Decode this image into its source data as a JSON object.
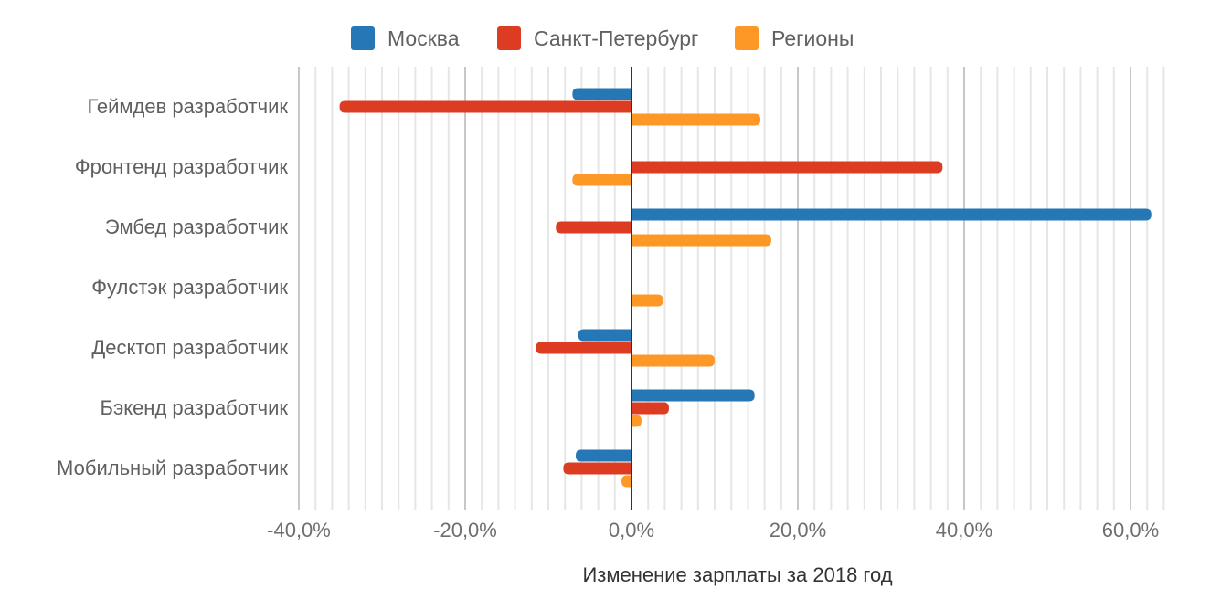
{
  "chart_data": {
    "type": "bar",
    "orientation": "horizontal",
    "title": "",
    "xlabel": "Изменение зарплаты за 2018 год",
    "ylabel": "",
    "xlim": [
      -40,
      64
    ],
    "x_ticks": [
      "-40,0%",
      "-20,0%",
      "0,0%",
      "20,0%",
      "40,0%",
      "60,0%"
    ],
    "x_tick_values": [
      -40,
      -20,
      0,
      20,
      40,
      60
    ],
    "grid": true,
    "minor_grid_step": 2,
    "legend_position": "top",
    "categories": [
      "Геймдев разработчик",
      "Фронтенд разработчик",
      "Эмбед разработчик",
      "Фулстэк разработчик",
      "Десктоп разработчик",
      "Бэкенд разработчик",
      "Мобильный разработчик"
    ],
    "series": [
      {
        "name": "Москва",
        "color": "#2577b5",
        "values": [
          -7.1,
          0,
          62.5,
          0,
          -6.4,
          14.8,
          -6.7
        ]
      },
      {
        "name": "Санкт-Петербург",
        "color": "#dc3d22",
        "values": [
          -35.1,
          37.4,
          -9.1,
          0,
          -11.5,
          4.5,
          -8.2
        ]
      },
      {
        "name": "Регионы",
        "color": "#fd9827",
        "values": [
          15.5,
          -7.1,
          16.8,
          3.8,
          10.0,
          1.2,
          -1.2
        ]
      }
    ]
  },
  "legend": {
    "items": [
      {
        "label": "Москва",
        "color": "#2577b5"
      },
      {
        "label": "Санкт-Петербург",
        "color": "#dc3d22"
      },
      {
        "label": "Регионы",
        "color": "#fd9827"
      }
    ]
  }
}
